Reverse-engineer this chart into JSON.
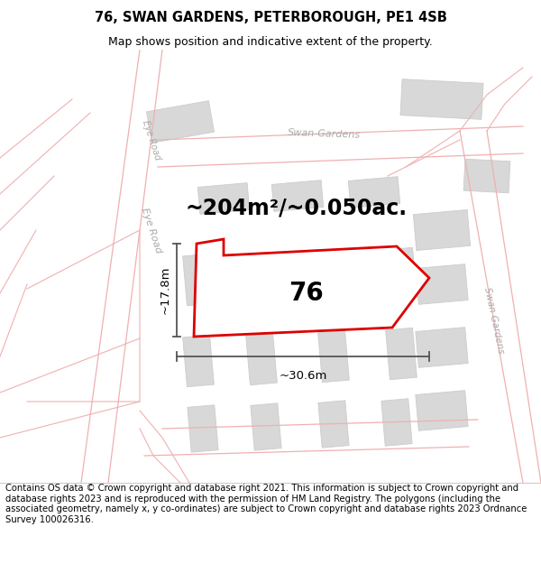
{
  "title": "76, SWAN GARDENS, PETERBOROUGH, PE1 4SB",
  "subtitle": "Map shows position and indicative extent of the property.",
  "area_text": "~204m²/~0.050ac.",
  "label_76": "76",
  "dim_width": "~30.6m",
  "dim_height": "~17.8m",
  "footer": "Contains OS data © Crown copyright and database right 2021. This information is subject to Crown copyright and database rights 2023 and is reproduced with the permission of HM Land Registry. The polygons (including the associated geometry, namely x, y co-ordinates) are subject to Crown copyright and database rights 2023 Ordnance Survey 100026316.",
  "bg_color": "#ffffff",
  "map_bg": "#ffffff",
  "road_line_color": "#f0b0b0",
  "building_fill": "#d8d8d8",
  "building_edge": "#cccccc",
  "plot_edge_color": "#dd0000",
  "plot_fill": "#ffffff",
  "road_label_color": "#aaaaaa",
  "dim_line_color": "#555555",
  "title_fontsize": 10.5,
  "subtitle_fontsize": 9,
  "area_fontsize": 17,
  "label_fontsize": 20,
  "dim_fontsize": 9.5,
  "road_label_fontsize": 8,
  "footer_fontsize": 7.2
}
